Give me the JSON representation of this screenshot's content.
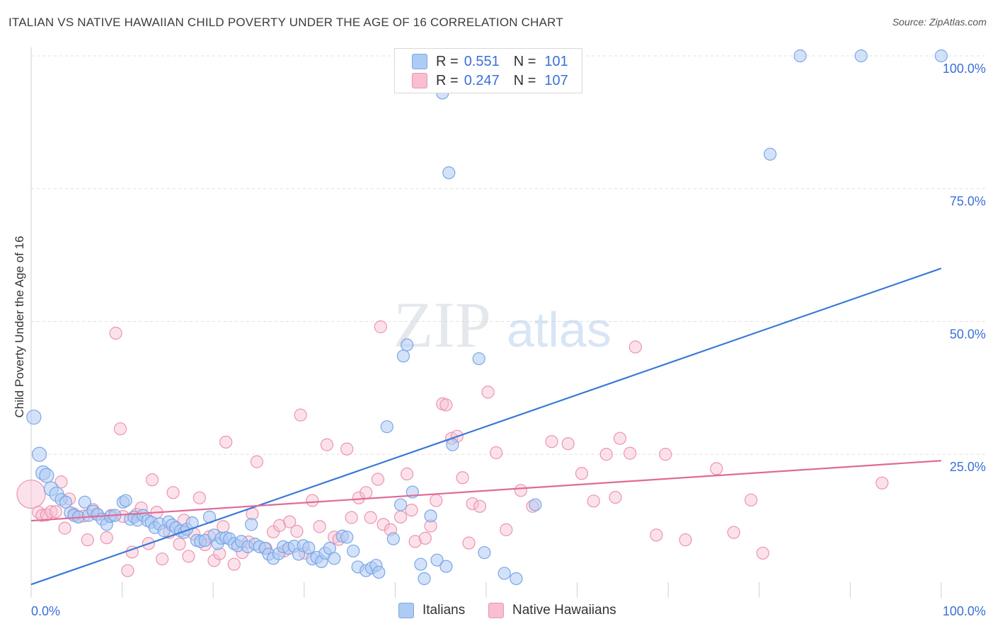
{
  "title": "ITALIAN VS NATIVE HAWAIIAN CHILD POVERTY UNDER THE AGE OF 16 CORRELATION CHART",
  "source": "Source: ZipAtlas.com",
  "watermark": {
    "zip": "ZIP",
    "atlas": "atlas"
  },
  "legend": {
    "r_label": "R =",
    "n_label": "N =",
    "rows": [
      {
        "r": "0.551",
        "n": "101",
        "fill": "#aecbf4",
        "stroke": "#7aa6e6"
      },
      {
        "r": "0.247",
        "n": "107",
        "fill": "#f7bfd0",
        "stroke": "#ee93b0"
      }
    ]
  },
  "bottom_legend": [
    {
      "label": "Italians",
      "fill": "#aecbf4",
      "stroke": "#7aa6e6"
    },
    {
      "label": "Native Hawaiians",
      "fill": "#f7bfd0",
      "stroke": "#ee93b0"
    }
  ],
  "chart_data": {
    "type": "scatter",
    "ylabel": "Child Poverty Under the Age of 16",
    "xlim": [
      0,
      100
    ],
    "ylim": [
      -2,
      100
    ],
    "x_tick_labels": [
      {
        "value": 0,
        "label": "0.0%"
      },
      {
        "value": 100,
        "label": "100.0%"
      }
    ],
    "y_tick_labels": [
      {
        "value": 25,
        "label": "25.0%"
      },
      {
        "value": 50,
        "label": "50.0%"
      },
      {
        "value": 75,
        "label": "75.0%"
      },
      {
        "value": 100,
        "label": "100.0%"
      }
    ],
    "grid": "dashed horizontal",
    "colors": {
      "italians": "#3a78d8",
      "hawaiians": "#e06a98",
      "tick_label": "#3a6fd8"
    },
    "series": [
      {
        "name": "Italians",
        "color": "#7aa6e6",
        "trend": {
          "x": [
            0,
            100
          ],
          "y": [
            0.5,
            60
          ]
        },
        "points": [
          [
            0.3,
            32
          ],
          [
            0.9,
            25
          ],
          [
            1.3,
            21.5
          ],
          [
            1.7,
            21
          ],
          [
            2.2,
            18.5
          ],
          [
            2.8,
            17.5
          ],
          [
            3.3,
            16.5
          ],
          [
            3.8,
            16
          ],
          [
            4.3,
            14
          ],
          [
            4.7,
            13.5
          ],
          [
            5.2,
            13.2
          ],
          [
            5.9,
            16
          ],
          [
            6.3,
            13.5
          ],
          [
            6.8,
            14.3
          ],
          [
            7.3,
            13.7
          ],
          [
            7.8,
            12.8
          ],
          [
            8.3,
            11.8
          ],
          [
            8.7,
            13.3
          ],
          [
            9.2,
            13.5
          ],
          [
            10.1,
            16
          ],
          [
            10.4,
            16.3
          ],
          [
            10.9,
            12.8
          ],
          [
            11.3,
            13.2
          ],
          [
            11.7,
            12.6
          ],
          [
            12.3,
            13.5
          ],
          [
            12.8,
            12.5
          ],
          [
            13.2,
            12.2
          ],
          [
            13.6,
            11.2
          ],
          [
            14.1,
            11.9
          ],
          [
            14.6,
            10.6
          ],
          [
            15.1,
            12.3
          ],
          [
            15.5,
            11.7
          ],
          [
            15.9,
            11.2
          ],
          [
            16.4,
            10.6
          ],
          [
            16.8,
            10.3
          ],
          [
            17.1,
            10.9
          ],
          [
            17.7,
            12.1
          ],
          [
            18.2,
            8.8
          ],
          [
            18.6,
            8.6
          ],
          [
            19.1,
            8.8
          ],
          [
            19.6,
            13.2
          ],
          [
            20.1,
            9.8
          ],
          [
            20.5,
            8.2
          ],
          [
            20.9,
            9.2
          ],
          [
            21.4,
            9.3
          ],
          [
            21.8,
            9.1
          ],
          [
            22.3,
            8.2
          ],
          [
            22.7,
            7.8
          ],
          [
            23.1,
            8.6
          ],
          [
            23.8,
            7.6
          ],
          [
            24.2,
            11.8
          ],
          [
            24.6,
            8.1
          ],
          [
            25.1,
            7.6
          ],
          [
            25.7,
            7.3
          ],
          [
            26.1,
            6.2
          ],
          [
            26.6,
            5.4
          ],
          [
            27.2,
            6.3
          ],
          [
            27.7,
            7.6
          ],
          [
            28.3,
            7.3
          ],
          [
            28.9,
            7.7
          ],
          [
            29.4,
            6.2
          ],
          [
            29.9,
            7.8
          ],
          [
            30.5,
            7.4
          ],
          [
            30.9,
            5.3
          ],
          [
            31.4,
            5.6
          ],
          [
            31.9,
            4.8
          ],
          [
            32.3,
            6.4
          ],
          [
            32.8,
            7.3
          ],
          [
            33.3,
            5.4
          ],
          [
            34.2,
            9.6
          ],
          [
            34.7,
            9.4
          ],
          [
            35.4,
            6.8
          ],
          [
            35.9,
            3.8
          ],
          [
            36.8,
            3.1
          ],
          [
            37.4,
            3.6
          ],
          [
            37.9,
            4.1
          ],
          [
            38.2,
            2.8
          ],
          [
            39.1,
            30.2
          ],
          [
            39.8,
            9.1
          ],
          [
            40.6,
            15.5
          ],
          [
            40.9,
            43.5
          ],
          [
            41.3,
            45.6
          ],
          [
            41.9,
            17.9
          ],
          [
            42.8,
            4.3
          ],
          [
            43.2,
            1.6
          ],
          [
            43.9,
            13.4
          ],
          [
            44.6,
            5.1
          ],
          [
            45.2,
            93
          ],
          [
            45.6,
            3.9
          ],
          [
            45.9,
            78
          ],
          [
            46.3,
            26.8
          ],
          [
            49.2,
            43
          ],
          [
            49.8,
            6.5
          ],
          [
            52,
            2.6
          ],
          [
            53.3,
            1.6
          ],
          [
            55.4,
            15.5
          ],
          [
            81.2,
            81.5
          ],
          [
            84.5,
            100
          ],
          [
            91.2,
            100
          ],
          [
            100,
            100
          ]
        ]
      },
      {
        "name": "Native Hawaiians",
        "color": "#ee93b0",
        "trend": {
          "x": [
            0,
            100
          ],
          "y": [
            12.5,
            23.8
          ]
        },
        "points": [
          [
            0,
            17.5
          ],
          [
            0.8,
            14.1
          ],
          [
            1.2,
            13.5
          ],
          [
            1.7,
            13.6
          ],
          [
            2.2,
            14.2
          ],
          [
            2.7,
            14.2
          ],
          [
            3.3,
            19.8
          ],
          [
            3.7,
            11.1
          ],
          [
            4.2,
            16.6
          ],
          [
            4.7,
            13.8
          ],
          [
            5.2,
            13.2
          ],
          [
            5.8,
            13.4
          ],
          [
            6.2,
            8.9
          ],
          [
            6.8,
            14.6
          ],
          [
            7.2,
            13.7
          ],
          [
            8.3,
            9.3
          ],
          [
            8.8,
            13.5
          ],
          [
            9.3,
            47.8
          ],
          [
            9.8,
            29.8
          ],
          [
            10.1,
            13.3
          ],
          [
            10.6,
            3.1
          ],
          [
            11.1,
            6.6
          ],
          [
            11.6,
            13.7
          ],
          [
            12.1,
            14.9
          ],
          [
            12.9,
            8.2
          ],
          [
            13.3,
            20.2
          ],
          [
            13.8,
            14.1
          ],
          [
            14.4,
            5.3
          ],
          [
            15.2,
            10.3
          ],
          [
            15.6,
            17.8
          ],
          [
            16.3,
            8.1
          ],
          [
            16.8,
            12.6
          ],
          [
            17.3,
            5.8
          ],
          [
            17.9,
            10
          ],
          [
            18.5,
            16.8
          ],
          [
            19.1,
            8
          ],
          [
            19.6,
            9.5
          ],
          [
            20.1,
            5
          ],
          [
            20.7,
            6.3
          ],
          [
            21.1,
            11.4
          ],
          [
            21.4,
            27.3
          ],
          [
            22.3,
            4.3
          ],
          [
            23.2,
            6.5
          ],
          [
            23.9,
            8.5
          ],
          [
            24.3,
            13.8
          ],
          [
            24.8,
            23.6
          ],
          [
            25.8,
            7.3
          ],
          [
            26.6,
            10.4
          ],
          [
            27.3,
            11.6
          ],
          [
            27.8,
            6.8
          ],
          [
            28.4,
            12.3
          ],
          [
            29.2,
            10.5
          ],
          [
            29.6,
            32.4
          ],
          [
            30.1,
            6.4
          ],
          [
            30.9,
            16.3
          ],
          [
            31.7,
            11.4
          ],
          [
            32.5,
            26.8
          ],
          [
            33.3,
            9.4
          ],
          [
            33.8,
            9
          ],
          [
            34.7,
            26
          ],
          [
            35.2,
            13.1
          ],
          [
            36,
            16.8
          ],
          [
            36.8,
            17.8
          ],
          [
            37.3,
            13.1
          ],
          [
            38.1,
            20.3
          ],
          [
            38.4,
            49
          ],
          [
            38.7,
            11.8
          ],
          [
            39.5,
            10.8
          ],
          [
            40.6,
            13.2
          ],
          [
            41.3,
            21.3
          ],
          [
            41.8,
            14.5
          ],
          [
            42.2,
            8.6
          ],
          [
            43.3,
            9.2
          ],
          [
            43.9,
            11.5
          ],
          [
            44.5,
            16.3
          ],
          [
            45.2,
            34.5
          ],
          [
            45.6,
            34.3
          ],
          [
            46.2,
            28
          ],
          [
            46.8,
            28.4
          ],
          [
            47.4,
            20.6
          ],
          [
            48.1,
            8.3
          ],
          [
            48.5,
            15.7
          ],
          [
            49.3,
            15.2
          ],
          [
            50.2,
            36.7
          ],
          [
            51.1,
            25.3
          ],
          [
            52.2,
            10.8
          ],
          [
            53.8,
            18.2
          ],
          [
            55.1,
            15.2
          ],
          [
            57.2,
            27.4
          ],
          [
            59,
            27
          ],
          [
            60.5,
            21.4
          ],
          [
            61.8,
            16.2
          ],
          [
            63.2,
            25
          ],
          [
            64.2,
            16.9
          ],
          [
            64.7,
            28
          ],
          [
            65.8,
            25.2
          ],
          [
            66.4,
            45.2
          ],
          [
            68.7,
            9.8
          ],
          [
            69.7,
            25
          ],
          [
            71.9,
            8.9
          ],
          [
            75.3,
            22.3
          ],
          [
            77.2,
            10.3
          ],
          [
            79.1,
            16.4
          ],
          [
            80.4,
            6.4
          ],
          [
            93.5,
            19.6
          ]
        ]
      }
    ]
  }
}
